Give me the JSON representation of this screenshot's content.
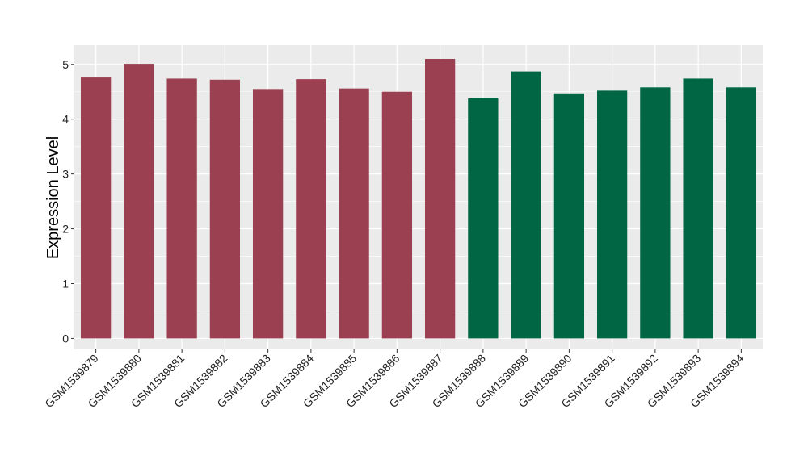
{
  "chart_data": {
    "type": "bar",
    "title": "",
    "xlabel": "",
    "ylabel": "Expression Level",
    "ylim": [
      -0.2,
      5.35
    ],
    "yticks": [
      0,
      1,
      2,
      3,
      4,
      5
    ],
    "grid": true,
    "categories": [
      "GSM1539879",
      "GSM1539880",
      "GSM1539881",
      "GSM1539882",
      "GSM1539883",
      "GSM1539884",
      "GSM1539885",
      "GSM1539886",
      "GSM1539887",
      "GSM1539888",
      "GSM1539889",
      "GSM1539890",
      "GSM1539891",
      "GSM1539892",
      "GSM1539893",
      "GSM1539894"
    ],
    "values": [
      4.76,
      5.01,
      4.74,
      4.72,
      4.55,
      4.73,
      4.56,
      4.5,
      5.1,
      4.38,
      4.87,
      4.47,
      4.52,
      4.58,
      4.74,
      4.58
    ],
    "colors": [
      "#9a4050",
      "#9a4050",
      "#9a4050",
      "#9a4050",
      "#9a4050",
      "#9a4050",
      "#9a4050",
      "#9a4050",
      "#9a4050",
      "#006644",
      "#006644",
      "#006644",
      "#006644",
      "#006644",
      "#006644",
      "#006644"
    ],
    "panel_background": "#ebebeb",
    "grid_color": "#ffffff"
  }
}
